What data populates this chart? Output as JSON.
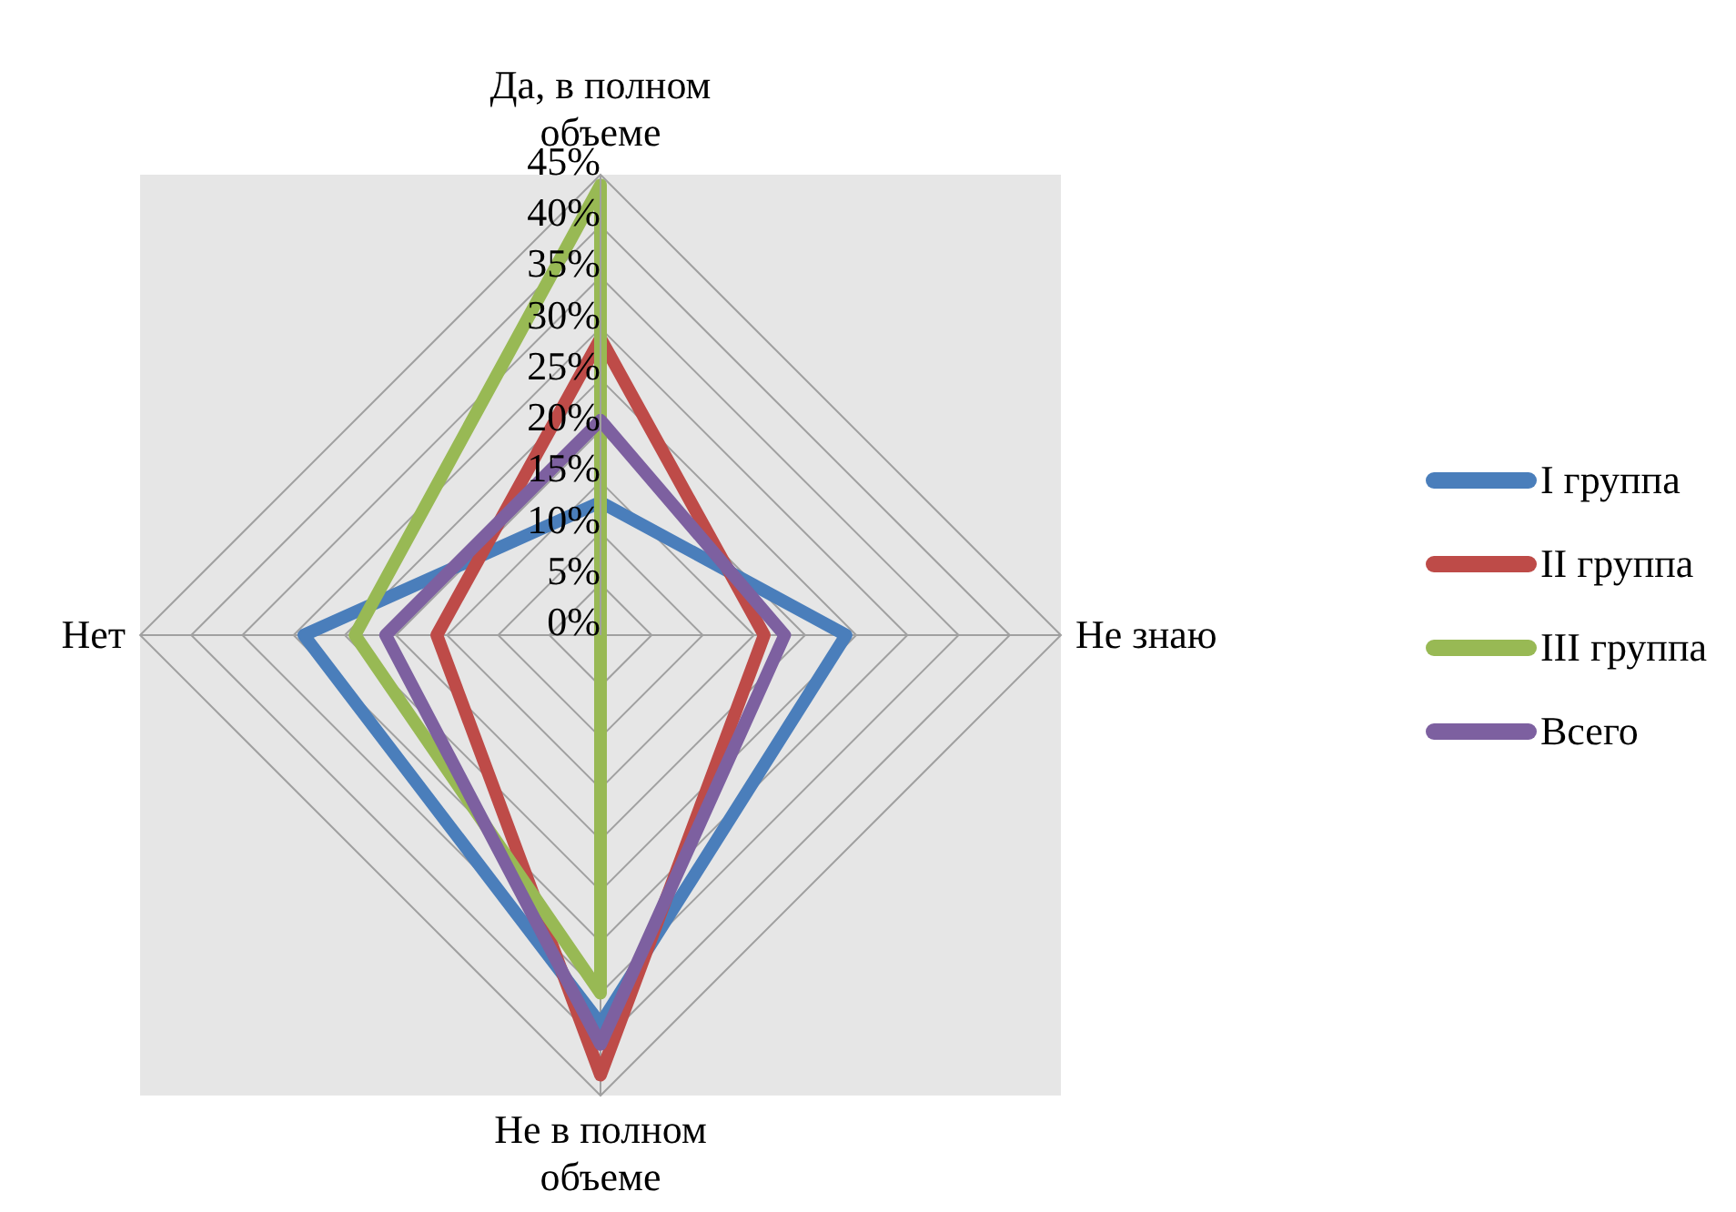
{
  "chart_data": {
    "type": "radar",
    "categories": [
      "Да, в полном объеме",
      "Не знаю",
      "Не в полном объеме",
      "Нет"
    ],
    "series": [
      {
        "name": "I группа",
        "color": "#4a7ebb",
        "values": [
          13,
          24,
          38,
          29
        ]
      },
      {
        "name": "II группа",
        "color": "#be4b48",
        "values": [
          29,
          16,
          43,
          16
        ]
      },
      {
        "name": "III группа",
        "color": "#98b954",
        "values": [
          44,
          0,
          35,
          24
        ]
      },
      {
        "name": "Всего",
        "color": "#7d60a0",
        "values": [
          21,
          18,
          40,
          21
        ]
      }
    ],
    "ylim": [
      0,
      45
    ],
    "yticks": [
      {
        "value": 0,
        "label": "0%"
      },
      {
        "value": 5,
        "label": "5%"
      },
      {
        "value": 10,
        "label": "10%"
      },
      {
        "value": 15,
        "label": "15%"
      },
      {
        "value": 20,
        "label": "20%"
      },
      {
        "value": 25,
        "label": "25%"
      },
      {
        "value": 30,
        "label": "30%"
      },
      {
        "value": 35,
        "label": "35%"
      },
      {
        "value": 40,
        "label": "40%"
      },
      {
        "value": 45,
        "label": "45%"
      }
    ],
    "grid": true,
    "legend": "right"
  }
}
